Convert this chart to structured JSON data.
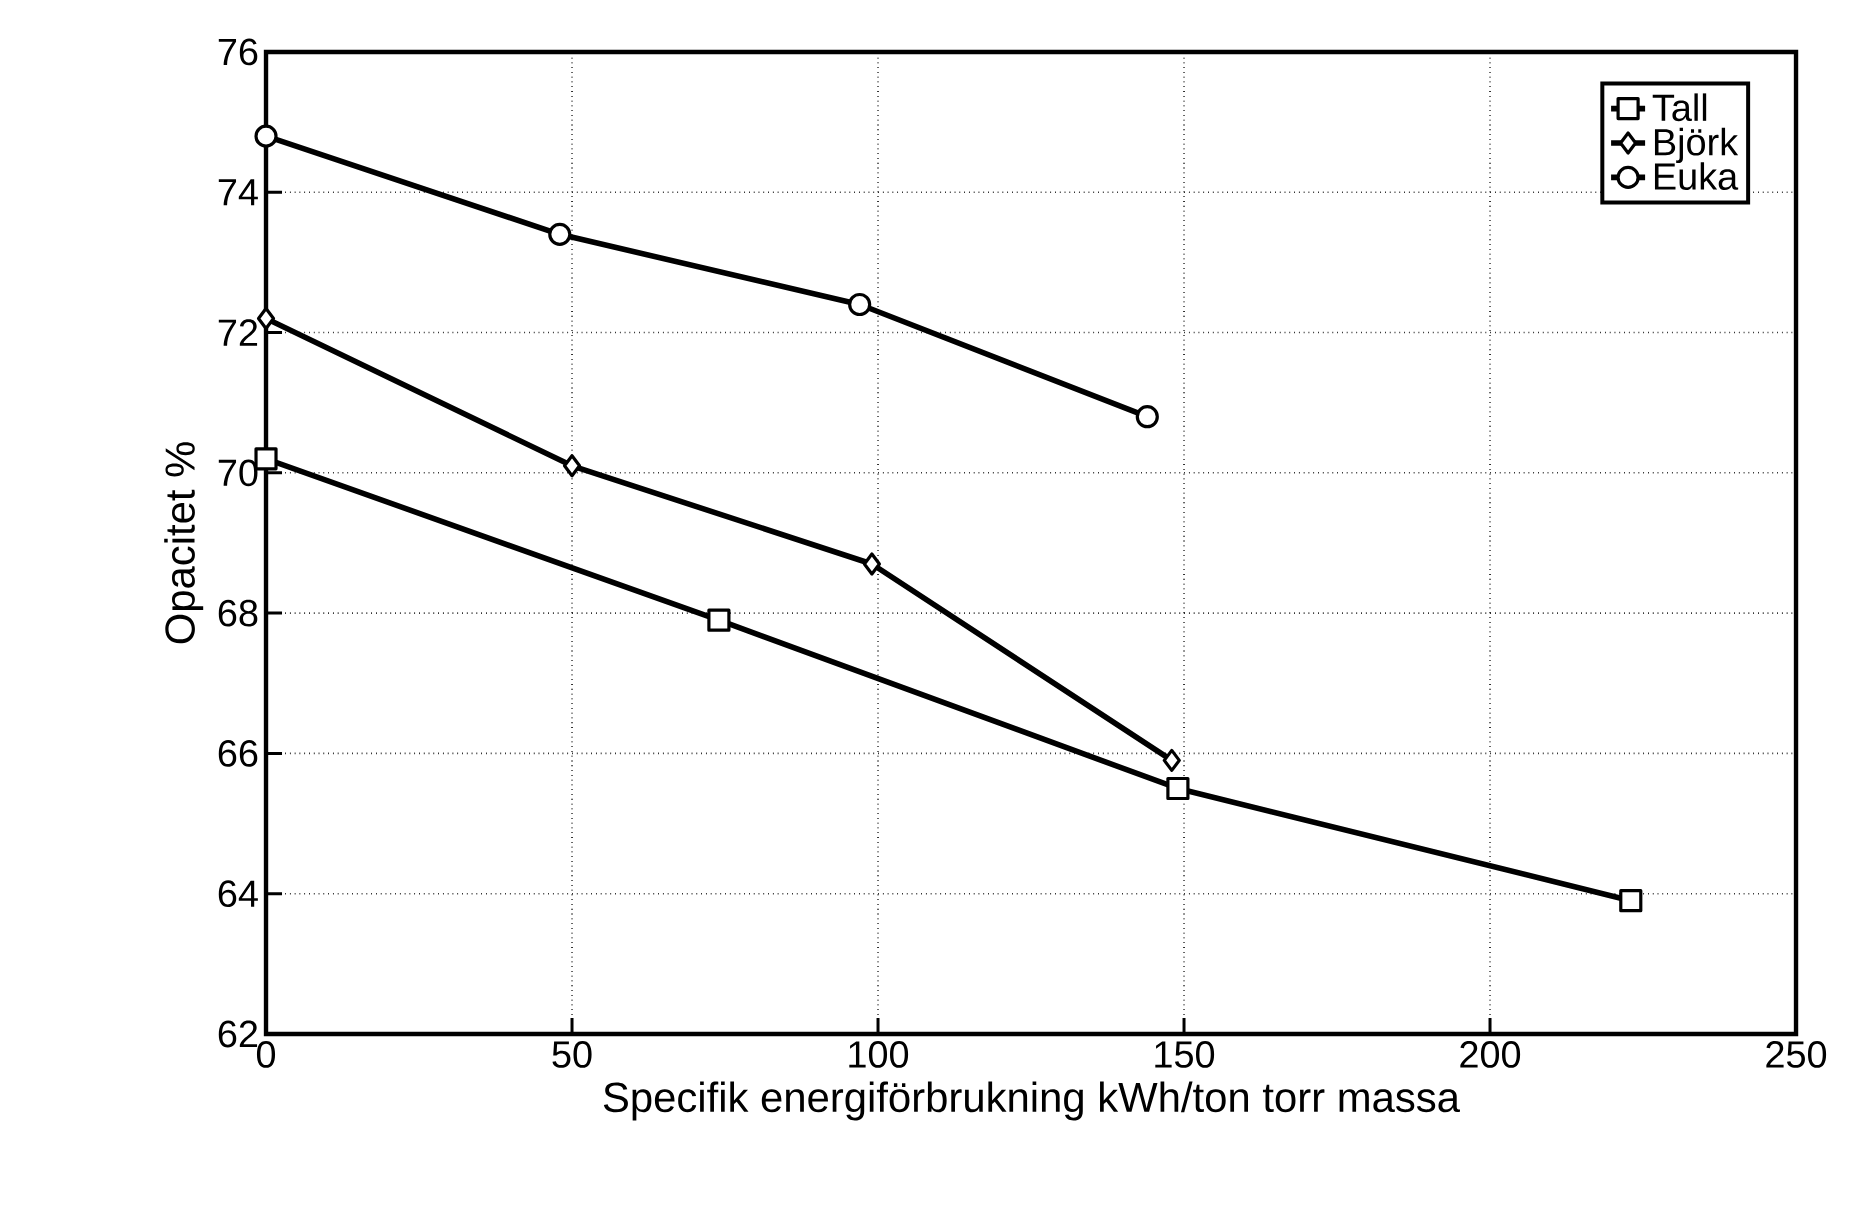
{
  "chart_data": {
    "type": "line",
    "xlabel": "Specifik energiförbrukning kWh/ton torr massa",
    "ylabel": "Opacitet %",
    "xlim": [
      0,
      250
    ],
    "xticks": [
      0,
      50,
      100,
      150,
      200,
      250
    ],
    "ylim": [
      62,
      76
    ],
    "yticks": [
      62,
      64,
      66,
      68,
      70,
      72,
      74,
      76
    ],
    "grid": true,
    "legend": "top right",
    "line_style": "solid",
    "series": [
      {
        "name": "Tall",
        "color": "#000000",
        "marker": "square",
        "x": [
          0,
          74,
          149,
          223
        ],
        "values": [
          70.2,
          67.9,
          65.5,
          63.9
        ]
      },
      {
        "name": "Björk",
        "color": "#000000",
        "marker": "diamond",
        "x": [
          0,
          50,
          99,
          148
        ],
        "values": [
          72.2,
          70.1,
          68.7,
          65.9
        ]
      },
      {
        "name": "Euka",
        "color": "#000000",
        "marker": "circle",
        "x": [
          0,
          48,
          97,
          144
        ],
        "values": [
          74.8,
          73.4,
          72.4,
          70.8
        ]
      }
    ]
  }
}
